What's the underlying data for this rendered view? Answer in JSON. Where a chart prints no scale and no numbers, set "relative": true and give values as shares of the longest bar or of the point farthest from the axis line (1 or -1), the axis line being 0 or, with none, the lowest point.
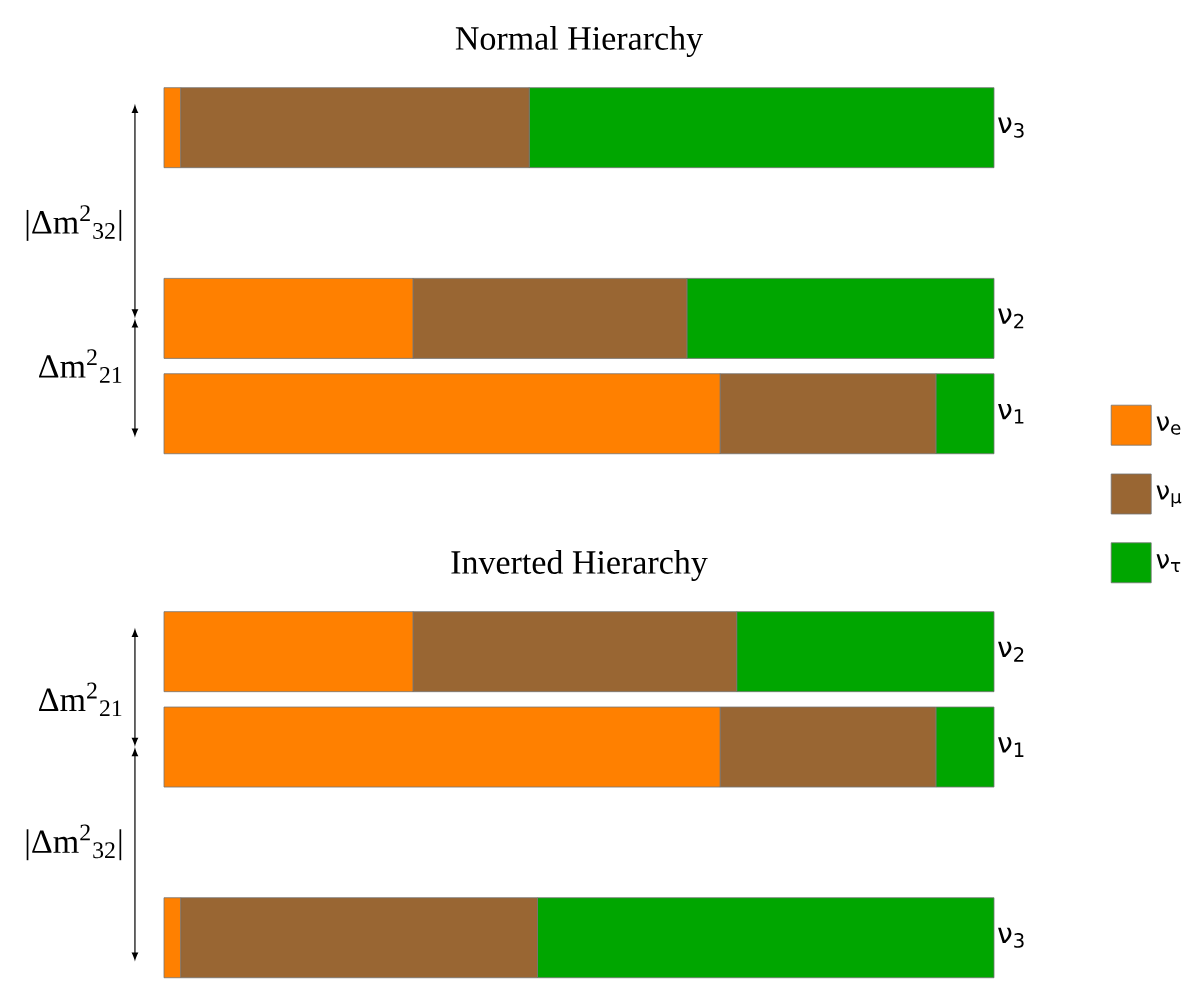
{
  "chart_data": [
    {
      "type": "bar",
      "title": "Normal Hierarchy",
      "orientation": "horizontal",
      "stacked": true,
      "relative": true,
      "legend": "right",
      "categories": [
        "ν$_{3}$",
        null,
        "ν$_{2}$",
        "ν$_{1}$"
      ],
      "series": [
        {
          "name": "ν$_{e}$",
          "color": "#ff8000",
          "values": [
            0.02,
            null,
            0.3,
            0.67
          ]
        },
        {
          "name": "ν$_{μ}$",
          "color": "#996633",
          "values": [
            0.42,
            null,
            0.33,
            0.26
          ]
        },
        {
          "name": "ν$_{τ}$",
          "color": "#00a600",
          "values": [
            0.56,
            null,
            0.37,
            0.07
          ]
        }
      ],
      "annotations": [
        "|Δm$^{2}$$_{32}$|",
        "Δm$^{2}$$_{21}$"
      ]
    },
    {
      "type": "bar",
      "title": "Inverted Hierarchy",
      "orientation": "horizontal",
      "stacked": true,
      "relative": true,
      "categories": [
        "ν$_{2}$",
        "ν$_{1}$",
        null,
        "ν$_{3}$"
      ],
      "series": [
        {
          "color": "#ff8000",
          "values": [
            0.3,
            0.67,
            null,
            0.02
          ]
        },
        {
          "color": "#996633",
          "values": [
            0.39,
            0.26,
            null,
            0.43
          ]
        },
        {
          "color": "#00a600",
          "values": [
            0.31,
            0.07,
            null,
            0.55
          ]
        }
      ],
      "annotations": [
        "Δm$^{2}$$_{21}$",
        "|Δm$^{2}$$_{32}$|"
      ]
    }
  ]
}
